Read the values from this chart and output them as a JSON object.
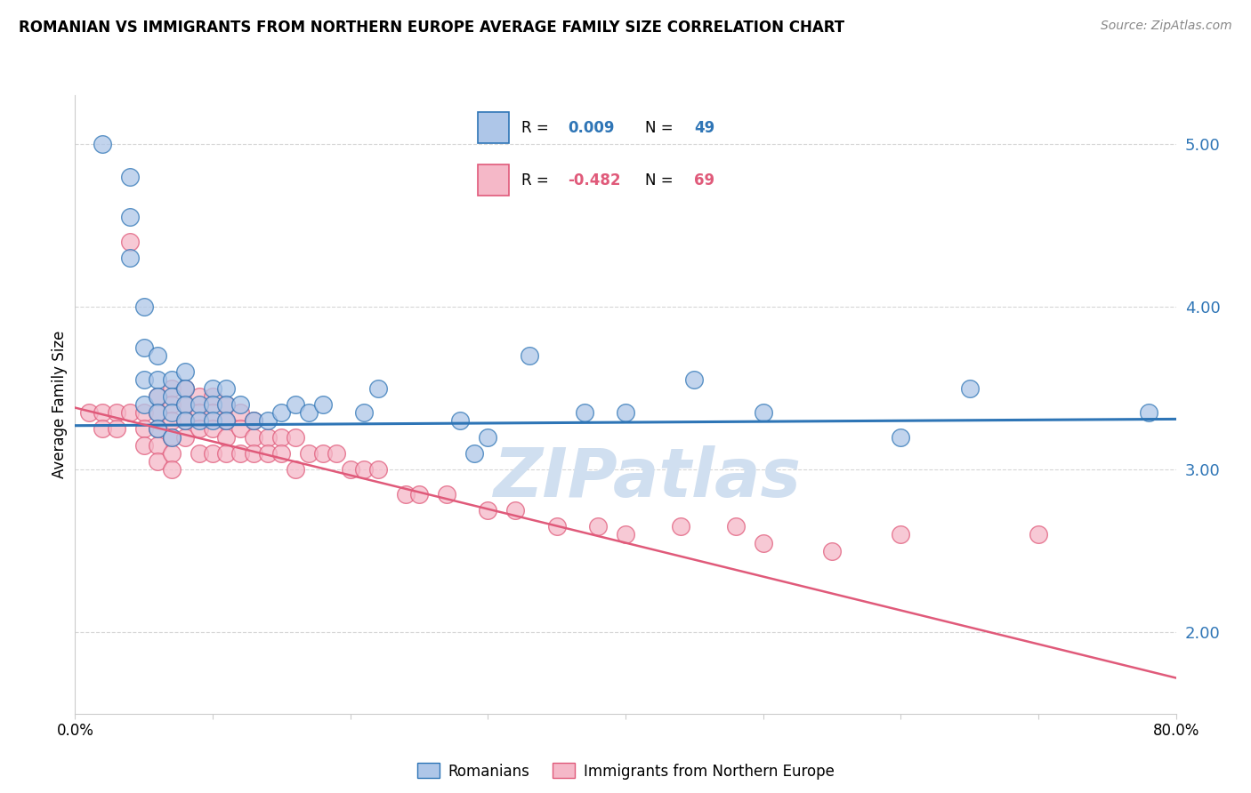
{
  "title": "ROMANIAN VS IMMIGRANTS FROM NORTHERN EUROPE AVERAGE FAMILY SIZE CORRELATION CHART",
  "source": "Source: ZipAtlas.com",
  "ylabel": "Average Family Size",
  "watermark": "ZIPatlas",
  "ylim": [
    1.5,
    5.3
  ],
  "xlim": [
    0.0,
    0.8
  ],
  "yticks": [
    2.0,
    3.0,
    4.0,
    5.0
  ],
  "xticks": [
    0.0,
    0.1,
    0.2,
    0.3,
    0.4,
    0.5,
    0.6,
    0.7,
    0.8
  ],
  "blue_color": "#aec6e8",
  "pink_color": "#f5b8c8",
  "blue_line_color": "#2e75b6",
  "pink_line_color": "#e05a7a",
  "legend_r_blue": "0.009",
  "legend_n_blue": "49",
  "legend_r_pink": "-0.482",
  "legend_n_pink": "69",
  "legend_label_blue": "Romanians",
  "legend_label_pink": "Immigrants from Northern Europe",
  "blue_scatter_x": [
    0.02,
    0.04,
    0.04,
    0.04,
    0.05,
    0.05,
    0.05,
    0.05,
    0.06,
    0.06,
    0.06,
    0.06,
    0.06,
    0.07,
    0.07,
    0.07,
    0.07,
    0.08,
    0.08,
    0.08,
    0.08,
    0.09,
    0.09,
    0.1,
    0.1,
    0.1,
    0.11,
    0.11,
    0.11,
    0.12,
    0.13,
    0.14,
    0.15,
    0.16,
    0.17,
    0.18,
    0.21,
    0.22,
    0.28,
    0.29,
    0.3,
    0.33,
    0.37,
    0.4,
    0.45,
    0.5,
    0.6,
    0.65,
    0.78
  ],
  "blue_scatter_y": [
    5.0,
    4.8,
    4.55,
    4.3,
    4.0,
    3.75,
    3.55,
    3.4,
    3.7,
    3.55,
    3.45,
    3.35,
    3.25,
    3.55,
    3.45,
    3.35,
    3.2,
    3.6,
    3.5,
    3.4,
    3.3,
    3.4,
    3.3,
    3.5,
    3.4,
    3.3,
    3.5,
    3.4,
    3.3,
    3.4,
    3.3,
    3.3,
    3.35,
    3.4,
    3.35,
    3.4,
    3.35,
    3.5,
    3.3,
    3.1,
    3.2,
    3.7,
    3.35,
    3.35,
    3.55,
    3.35,
    3.2,
    3.5,
    3.35
  ],
  "pink_scatter_x": [
    0.01,
    0.02,
    0.02,
    0.03,
    0.03,
    0.04,
    0.04,
    0.05,
    0.05,
    0.05,
    0.06,
    0.06,
    0.06,
    0.06,
    0.06,
    0.07,
    0.07,
    0.07,
    0.07,
    0.07,
    0.07,
    0.08,
    0.08,
    0.08,
    0.08,
    0.09,
    0.09,
    0.09,
    0.09,
    0.1,
    0.1,
    0.1,
    0.1,
    0.11,
    0.11,
    0.11,
    0.11,
    0.12,
    0.12,
    0.12,
    0.13,
    0.13,
    0.13,
    0.14,
    0.14,
    0.15,
    0.15,
    0.16,
    0.16,
    0.17,
    0.18,
    0.19,
    0.2,
    0.21,
    0.22,
    0.24,
    0.25,
    0.27,
    0.3,
    0.32,
    0.35,
    0.38,
    0.4,
    0.44,
    0.48,
    0.5,
    0.55,
    0.6,
    0.7
  ],
  "pink_scatter_y": [
    3.35,
    3.35,
    3.25,
    3.35,
    3.25,
    4.4,
    3.35,
    3.35,
    3.25,
    3.15,
    3.45,
    3.35,
    3.25,
    3.15,
    3.05,
    3.5,
    3.4,
    3.3,
    3.2,
    3.1,
    3.0,
    3.5,
    3.4,
    3.3,
    3.2,
    3.45,
    3.35,
    3.25,
    3.1,
    3.45,
    3.35,
    3.25,
    3.1,
    3.4,
    3.3,
    3.2,
    3.1,
    3.35,
    3.25,
    3.1,
    3.3,
    3.2,
    3.1,
    3.2,
    3.1,
    3.2,
    3.1,
    3.2,
    3.0,
    3.1,
    3.1,
    3.1,
    3.0,
    3.0,
    3.0,
    2.85,
    2.85,
    2.85,
    2.75,
    2.75,
    2.65,
    2.65,
    2.6,
    2.65,
    2.65,
    2.55,
    2.5,
    2.6,
    2.6
  ],
  "blue_line_x": [
    0.0,
    0.8
  ],
  "blue_line_y": [
    3.27,
    3.31
  ],
  "pink_line_x": [
    0.0,
    0.8
  ],
  "pink_line_y": [
    3.38,
    1.72
  ]
}
